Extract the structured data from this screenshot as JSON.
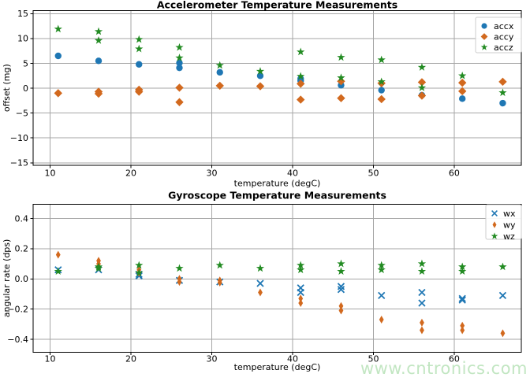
{
  "figure": {
    "background": "#ffffff"
  },
  "watermark": {
    "text": "www.cntronics.com",
    "color": "#bfe5bf"
  },
  "colors": {
    "blue": "#1f77b4",
    "orange": "#d2691e",
    "green": "#228b22",
    "grid": "#a6a6a6"
  },
  "chart_data": [
    {
      "type": "scatter",
      "title": "Accelerometer Temperature Measurements",
      "xlabel": "temperature (degC)",
      "ylabel": "offset (mg)",
      "xlim": [
        7.9,
        68.3
      ],
      "ylim": [
        -15.5,
        15.6
      ],
      "xticks": [
        10,
        20,
        30,
        40,
        50,
        60
      ],
      "yticks": [
        15,
        10,
        5,
        0,
        -5,
        -10,
        -15
      ],
      "ytick_labels": [
        "15",
        "10",
        "5",
        "0",
        "−5",
        "−10",
        "−15"
      ],
      "grid": true,
      "legend_position": "upper right",
      "series": [
        {
          "name": "accx",
          "marker": "circle",
          "color": "#1f77b4",
          "points": [
            [
              11,
              6.5
            ],
            [
              16,
              5.5
            ],
            [
              21,
              4.8
            ],
            [
              26,
              5.1
            ],
            [
              26,
              4.1
            ],
            [
              31,
              3.2
            ],
            [
              36,
              2.5
            ],
            [
              41,
              1.9
            ],
            [
              41,
              1.5
            ],
            [
              46,
              0.6
            ],
            [
              51,
              -0.4
            ],
            [
              56,
              -1.4
            ],
            [
              61,
              -2.1
            ],
            [
              66,
              -3.0
            ]
          ]
        },
        {
          "name": "accy",
          "marker": "diamond",
          "color": "#d2691e",
          "points": [
            [
              11,
              -1.0
            ],
            [
              16,
              -0.7
            ],
            [
              16,
              -1.1
            ],
            [
              21,
              -0.3
            ],
            [
              21,
              -0.7
            ],
            [
              26,
              0.1
            ],
            [
              26,
              -2.8
            ],
            [
              31,
              0.5
            ],
            [
              36,
              0.4
            ],
            [
              41,
              0.9
            ],
            [
              41,
              -2.3
            ],
            [
              46,
              1.4
            ],
            [
              46,
              -2.0
            ],
            [
              51,
              1.0
            ],
            [
              51,
              -2.2
            ],
            [
              56,
              1.2
            ],
            [
              56,
              -1.5
            ],
            [
              61,
              1.1
            ],
            [
              61,
              -0.6
            ],
            [
              66,
              1.3
            ]
          ]
        },
        {
          "name": "accz",
          "marker": "star",
          "color": "#228b22",
          "points": [
            [
              11,
              11.9
            ],
            [
              16,
              11.4
            ],
            [
              16,
              9.6
            ],
            [
              21,
              9.8
            ],
            [
              21,
              7.9
            ],
            [
              26,
              8.2
            ],
            [
              26,
              6.1
            ],
            [
              31,
              4.6
            ],
            [
              36,
              3.4
            ],
            [
              41,
              7.3
            ],
            [
              41,
              2.4
            ],
            [
              46,
              6.2
            ],
            [
              46,
              2.1
            ],
            [
              51,
              5.7
            ],
            [
              51,
              1.3
            ],
            [
              56,
              4.2
            ],
            [
              56,
              0.1
            ],
            [
              61,
              2.5
            ],
            [
              66,
              -0.9
            ]
          ]
        }
      ]
    },
    {
      "type": "scatter",
      "title": "Gyroscope Temperature Measurements",
      "xlabel": "temperature (degC)",
      "ylabel": "angular rate (dps)",
      "xlim": [
        7.9,
        68.3
      ],
      "ylim": [
        -0.486,
        0.494
      ],
      "xticks": [
        10,
        20,
        30,
        40,
        50,
        60
      ],
      "yticks": [
        0.4,
        0.2,
        0.0,
        -0.2,
        -0.4
      ],
      "ytick_labels": [
        "0.4",
        "0.2",
        "0.0",
        "−0.2",
        "−0.4"
      ],
      "grid": true,
      "legend_position": "upper right",
      "series": [
        {
          "name": "wx",
          "marker": "x",
          "color": "#1f77b4",
          "points": [
            [
              11,
              0.06
            ],
            [
              16,
              0.06
            ],
            [
              21,
              0.03
            ],
            [
              21,
              0.02
            ],
            [
              26,
              -0.01
            ],
            [
              31,
              -0.02
            ],
            [
              36,
              -0.03
            ],
            [
              41,
              -0.06
            ],
            [
              41,
              -0.09
            ],
            [
              46,
              -0.05
            ],
            [
              46,
              -0.07
            ],
            [
              51,
              -0.11
            ],
            [
              56,
              -0.09
            ],
            [
              56,
              -0.16
            ],
            [
              61,
              -0.13
            ],
            [
              61,
              -0.14
            ],
            [
              66,
              -0.11
            ]
          ]
        },
        {
          "name": "wy",
          "marker": "thin-diamond",
          "color": "#d2691e",
          "points": [
            [
              11,
              0.16
            ],
            [
              16,
              0.12
            ],
            [
              16,
              0.1
            ],
            [
              16,
              0.08
            ],
            [
              21,
              0.06
            ],
            [
              21,
              0.04
            ],
            [
              26,
              0.0
            ],
            [
              26,
              -0.02
            ],
            [
              31,
              -0.01
            ],
            [
              31,
              -0.025
            ],
            [
              36,
              -0.09
            ],
            [
              41,
              -0.13
            ],
            [
              41,
              -0.16
            ],
            [
              46,
              -0.18
            ],
            [
              46,
              -0.21
            ],
            [
              51,
              -0.27
            ],
            [
              56,
              -0.29
            ],
            [
              56,
              -0.34
            ],
            [
              61,
              -0.31
            ],
            [
              61,
              -0.34
            ],
            [
              66,
              -0.36
            ]
          ]
        },
        {
          "name": "wz",
          "marker": "star",
          "color": "#228b22",
          "points": [
            [
              11,
              0.05
            ],
            [
              16,
              0.08
            ],
            [
              16,
              0.07
            ],
            [
              21,
              0.09
            ],
            [
              21,
              0.04
            ],
            [
              26,
              0.07
            ],
            [
              31,
              0.09
            ],
            [
              36,
              0.07
            ],
            [
              41,
              0.09
            ],
            [
              41,
              0.06
            ],
            [
              46,
              0.1
            ],
            [
              46,
              0.05
            ],
            [
              51,
              0.09
            ],
            [
              51,
              0.06
            ],
            [
              56,
              0.1
            ],
            [
              56,
              0.05
            ],
            [
              61,
              0.08
            ],
            [
              61,
              0.05
            ],
            [
              66,
              0.08
            ]
          ]
        }
      ]
    }
  ]
}
